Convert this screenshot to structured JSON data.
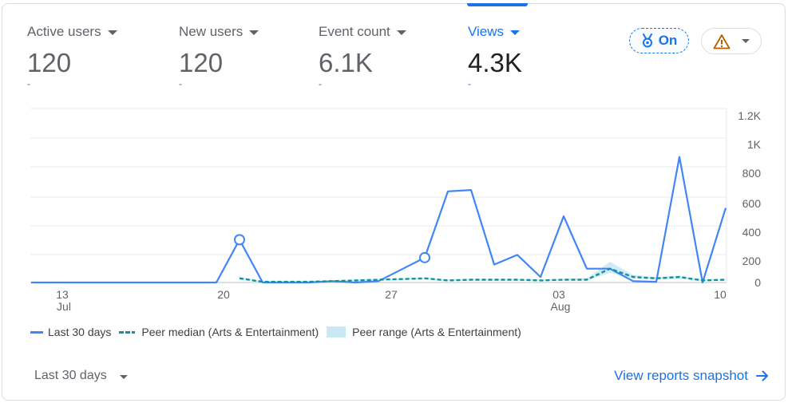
{
  "metrics": [
    {
      "label": "Active users",
      "value": "120",
      "delta": "-"
    },
    {
      "label": "New users",
      "value": "120",
      "delta": "-"
    },
    {
      "label": "Event count",
      "value": "6.1K",
      "delta": "-"
    },
    {
      "label": "Views",
      "value": "4.3K",
      "delta": "-"
    }
  ],
  "benchmark_toggle": {
    "label": "On",
    "icon": "medal-icon"
  },
  "alert_menu": {
    "icon": "warning-icon",
    "color": "#b06000"
  },
  "chart_data": {
    "type": "line",
    "x": [
      "Jul 11",
      "Jul 12",
      "Jul 13",
      "Jul 14",
      "Jul 15",
      "Jul 16",
      "Jul 17",
      "Jul 18",
      "Jul 19",
      "Jul 20",
      "Jul 21",
      "Jul 22",
      "Jul 23",
      "Jul 24",
      "Jul 25",
      "Jul 26",
      "Jul 27",
      "Jul 28",
      "Jul 29",
      "Jul 30",
      "Jul 31",
      "Aug 1",
      "Aug 2",
      "Aug 3",
      "Aug 4",
      "Aug 5",
      "Aug 6",
      "Aug 7",
      "Aug 8",
      "Aug 9",
      "Aug 10"
    ],
    "x_ticks": [
      {
        "day": "13",
        "month": "Jul"
      },
      {
        "day": "20",
        "month": ""
      },
      {
        "day": "27",
        "month": ""
      },
      {
        "day": "03",
        "month": "Aug"
      },
      {
        "day": "10",
        "month": ""
      }
    ],
    "y_ticks": [
      "1.2K",
      "1K",
      "800",
      "600",
      "400",
      "200",
      "0"
    ],
    "ylim": [
      0,
      1200
    ],
    "series": [
      {
        "name": "Last 30 days",
        "color": "#4285f4",
        "values": [
          0,
          0,
          0,
          0,
          0,
          0,
          0,
          0,
          0,
          310,
          0,
          0,
          0,
          10,
          0,
          10,
          null,
          180,
          660,
          670,
          130,
          200,
          40,
          480,
          100,
          100,
          10,
          5,
          910,
          0,
          540
        ]
      },
      {
        "name": "Peer median (Arts & Entertainment)",
        "color": "#12939a",
        "values": [
          null,
          null,
          null,
          null,
          null,
          null,
          null,
          null,
          null,
          30,
          5,
          5,
          5,
          10,
          15,
          20,
          25,
          30,
          15,
          20,
          20,
          20,
          15,
          20,
          20,
          100,
          40,
          30,
          40,
          15,
          20
        ]
      }
    ],
    "range": {
      "name": "Peer range (Arts & Entertainment)",
      "color": "#cbe9f5",
      "low": [
        null,
        null,
        null,
        null,
        null,
        null,
        null,
        null,
        null,
        25,
        0,
        0,
        0,
        5,
        10,
        15,
        20,
        25,
        10,
        15,
        15,
        15,
        10,
        15,
        15,
        70,
        30,
        20,
        30,
        10,
        15
      ],
      "high": [
        null,
        null,
        null,
        null,
        null,
        null,
        null,
        null,
        null,
        40,
        10,
        10,
        10,
        15,
        20,
        25,
        30,
        35,
        20,
        25,
        25,
        25,
        20,
        25,
        30,
        150,
        55,
        40,
        50,
        20,
        25
      ]
    },
    "markers": [
      9,
      17
    ],
    "grid": true,
    "legend_position": "bottom-left"
  },
  "footer": {
    "period_label": "Last 30 days",
    "snapshot_link": "View reports snapshot"
  }
}
